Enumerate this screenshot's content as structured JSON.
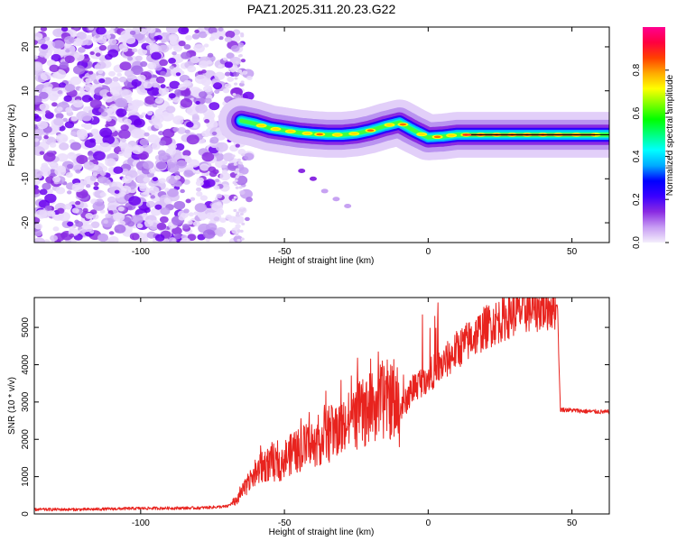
{
  "title": "PAZ1.2025.311.20.23.G22",
  "chart_data": [
    {
      "type": "heatmap",
      "xlabel": "Height of straight line (km)",
      "ylabel": "Frequency (Hz)",
      "xlim": [
        -137,
        63
      ],
      "ylim": [
        -24.5,
        24.5
      ],
      "xticks": [
        -100,
        -50,
        0,
        50
      ],
      "yticks": [
        -20,
        -10,
        0,
        10,
        20
      ],
      "grid": false,
      "colorbar": {
        "label": "Normalized spectral amplitude",
        "range": [
          0,
          1
        ],
        "ticks": [
          0.0,
          0.2,
          0.4,
          0.6,
          0.8
        ],
        "tick_labels": [
          "0.0",
          "0.2",
          "0.4",
          "0.6",
          "0.8"
        ],
        "colors": [
          "#f4eefc",
          "#c79cf3",
          "#8a2be2",
          "#3a00ff",
          "#0000ff",
          "#00aaff",
          "#00ffff",
          "#00ff80",
          "#00ff00",
          "#80ff00",
          "#ffff00",
          "#ffaa00",
          "#ff4000",
          "#ff0040",
          "#ff0090"
        ]
      },
      "ridge": {
        "description_points_height_km": [
          -65,
          -60,
          -55,
          -50,
          -45,
          -40,
          -35,
          -30,
          -25,
          -20,
          -15,
          -10,
          -5,
          0,
          5,
          10,
          20,
          30,
          40,
          50,
          63
        ],
        "frequency_hz": [
          3.2,
          2.5,
          1.5,
          1.0,
          0.5,
          0.2,
          0.0,
          0.0,
          0.3,
          1.0,
          2.0,
          2.8,
          1.0,
          -0.6,
          -0.4,
          0.0,
          0.0,
          0.0,
          0.0,
          0.0,
          0.0
        ]
      },
      "secondary_branch": {
        "height_km": [
          -44,
          -40,
          -36,
          -32,
          -28
        ],
        "frequency_hz": [
          -8.2,
          -10.0,
          -12.8,
          -14.6,
          -16.2
        ]
      },
      "noise_region_km": [
        -137,
        -68
      ]
    },
    {
      "type": "line",
      "xlabel": "Height of straight line (km)",
      "ylabel": "SNR (10 * v/v)",
      "xlim": [
        -137,
        63
      ],
      "ylim": [
        0,
        5800
      ],
      "xticks": [
        -100,
        -50,
        0,
        50
      ],
      "yticks": [
        0,
        1000,
        2000,
        3000,
        4000,
        5000
      ],
      "color": "#e8231e",
      "grid": false,
      "series": [
        {
          "name": "SNR",
          "x": [
            -137,
            -120,
            -100,
            -80,
            -70,
            -66,
            -63,
            -60,
            -57,
            -55,
            -52,
            -50,
            -45,
            -40,
            -35,
            -30,
            -25,
            -20,
            -15,
            -12,
            -10,
            -5,
            0,
            5,
            10,
            15,
            20,
            25,
            30,
            35,
            40,
            45,
            45.5,
            46,
            50,
            55,
            63
          ],
          "values": [
            120,
            120,
            150,
            160,
            200,
            400,
            800,
            1100,
            1300,
            1350,
            1300,
            1500,
            1700,
            1900,
            2100,
            2300,
            2600,
            2800,
            3100,
            3000,
            2700,
            3400,
            3700,
            4000,
            4400,
            4700,
            5000,
            5200,
            5400,
            5500,
            5550,
            5600,
            4000,
            2800,
            2780,
            2750,
            2730
          ]
        }
      ]
    }
  ]
}
